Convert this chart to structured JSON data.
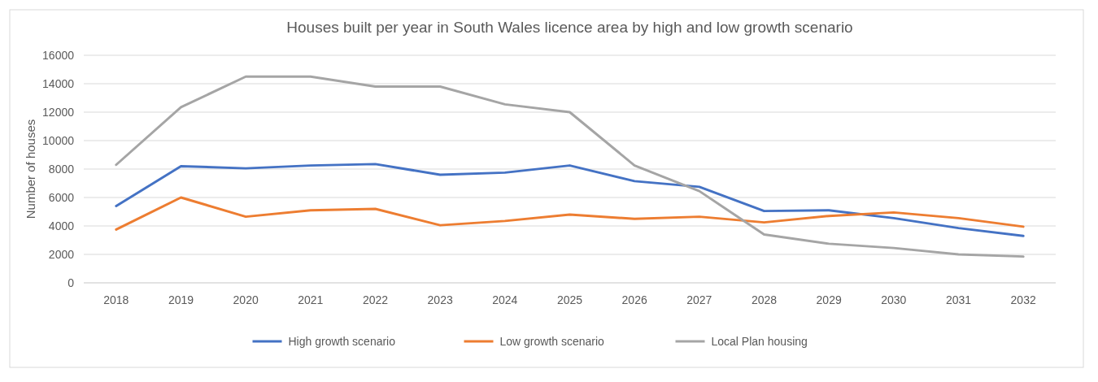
{
  "chart_data": {
    "type": "line",
    "title": "Houses built per year in South Wales licence area by high and low growth scenario",
    "ylabel": "Number of houses",
    "categories": [
      "2018",
      "2019",
      "2020",
      "2021",
      "2022",
      "2023",
      "2024",
      "2025",
      "2026",
      "2027",
      "2028",
      "2029",
      "2030",
      "2031",
      "2032"
    ],
    "series": [
      {
        "name": "High growth scenario",
        "color": "#4472c4",
        "values": [
          5400,
          8200,
          8050,
          8250,
          8350,
          7600,
          7750,
          8250,
          7150,
          6750,
          5050,
          5100,
          4550,
          3850,
          3300
        ]
      },
      {
        "name": "Low growth scenario",
        "color": "#ed7d31",
        "values": [
          3750,
          6000,
          4650,
          5100,
          5200,
          4050,
          4350,
          4800,
          4500,
          4650,
          4250,
          4700,
          4950,
          4550,
          3950
        ]
      },
      {
        "name": "Local Plan housing",
        "color": "#a5a5a5",
        "values": [
          8300,
          12350,
          14500,
          14500,
          13800,
          13800,
          12550,
          12000,
          8250,
          6450,
          3400,
          2750,
          2450,
          2000,
          1850
        ]
      }
    ],
    "ylim": [
      0,
      16000
    ],
    "yticks": [
      0,
      2000,
      4000,
      6000,
      8000,
      10000,
      12000,
      14000,
      16000
    ],
    "grid": "y",
    "legend": "bottom",
    "marker": "none",
    "line_style": "solid"
  }
}
